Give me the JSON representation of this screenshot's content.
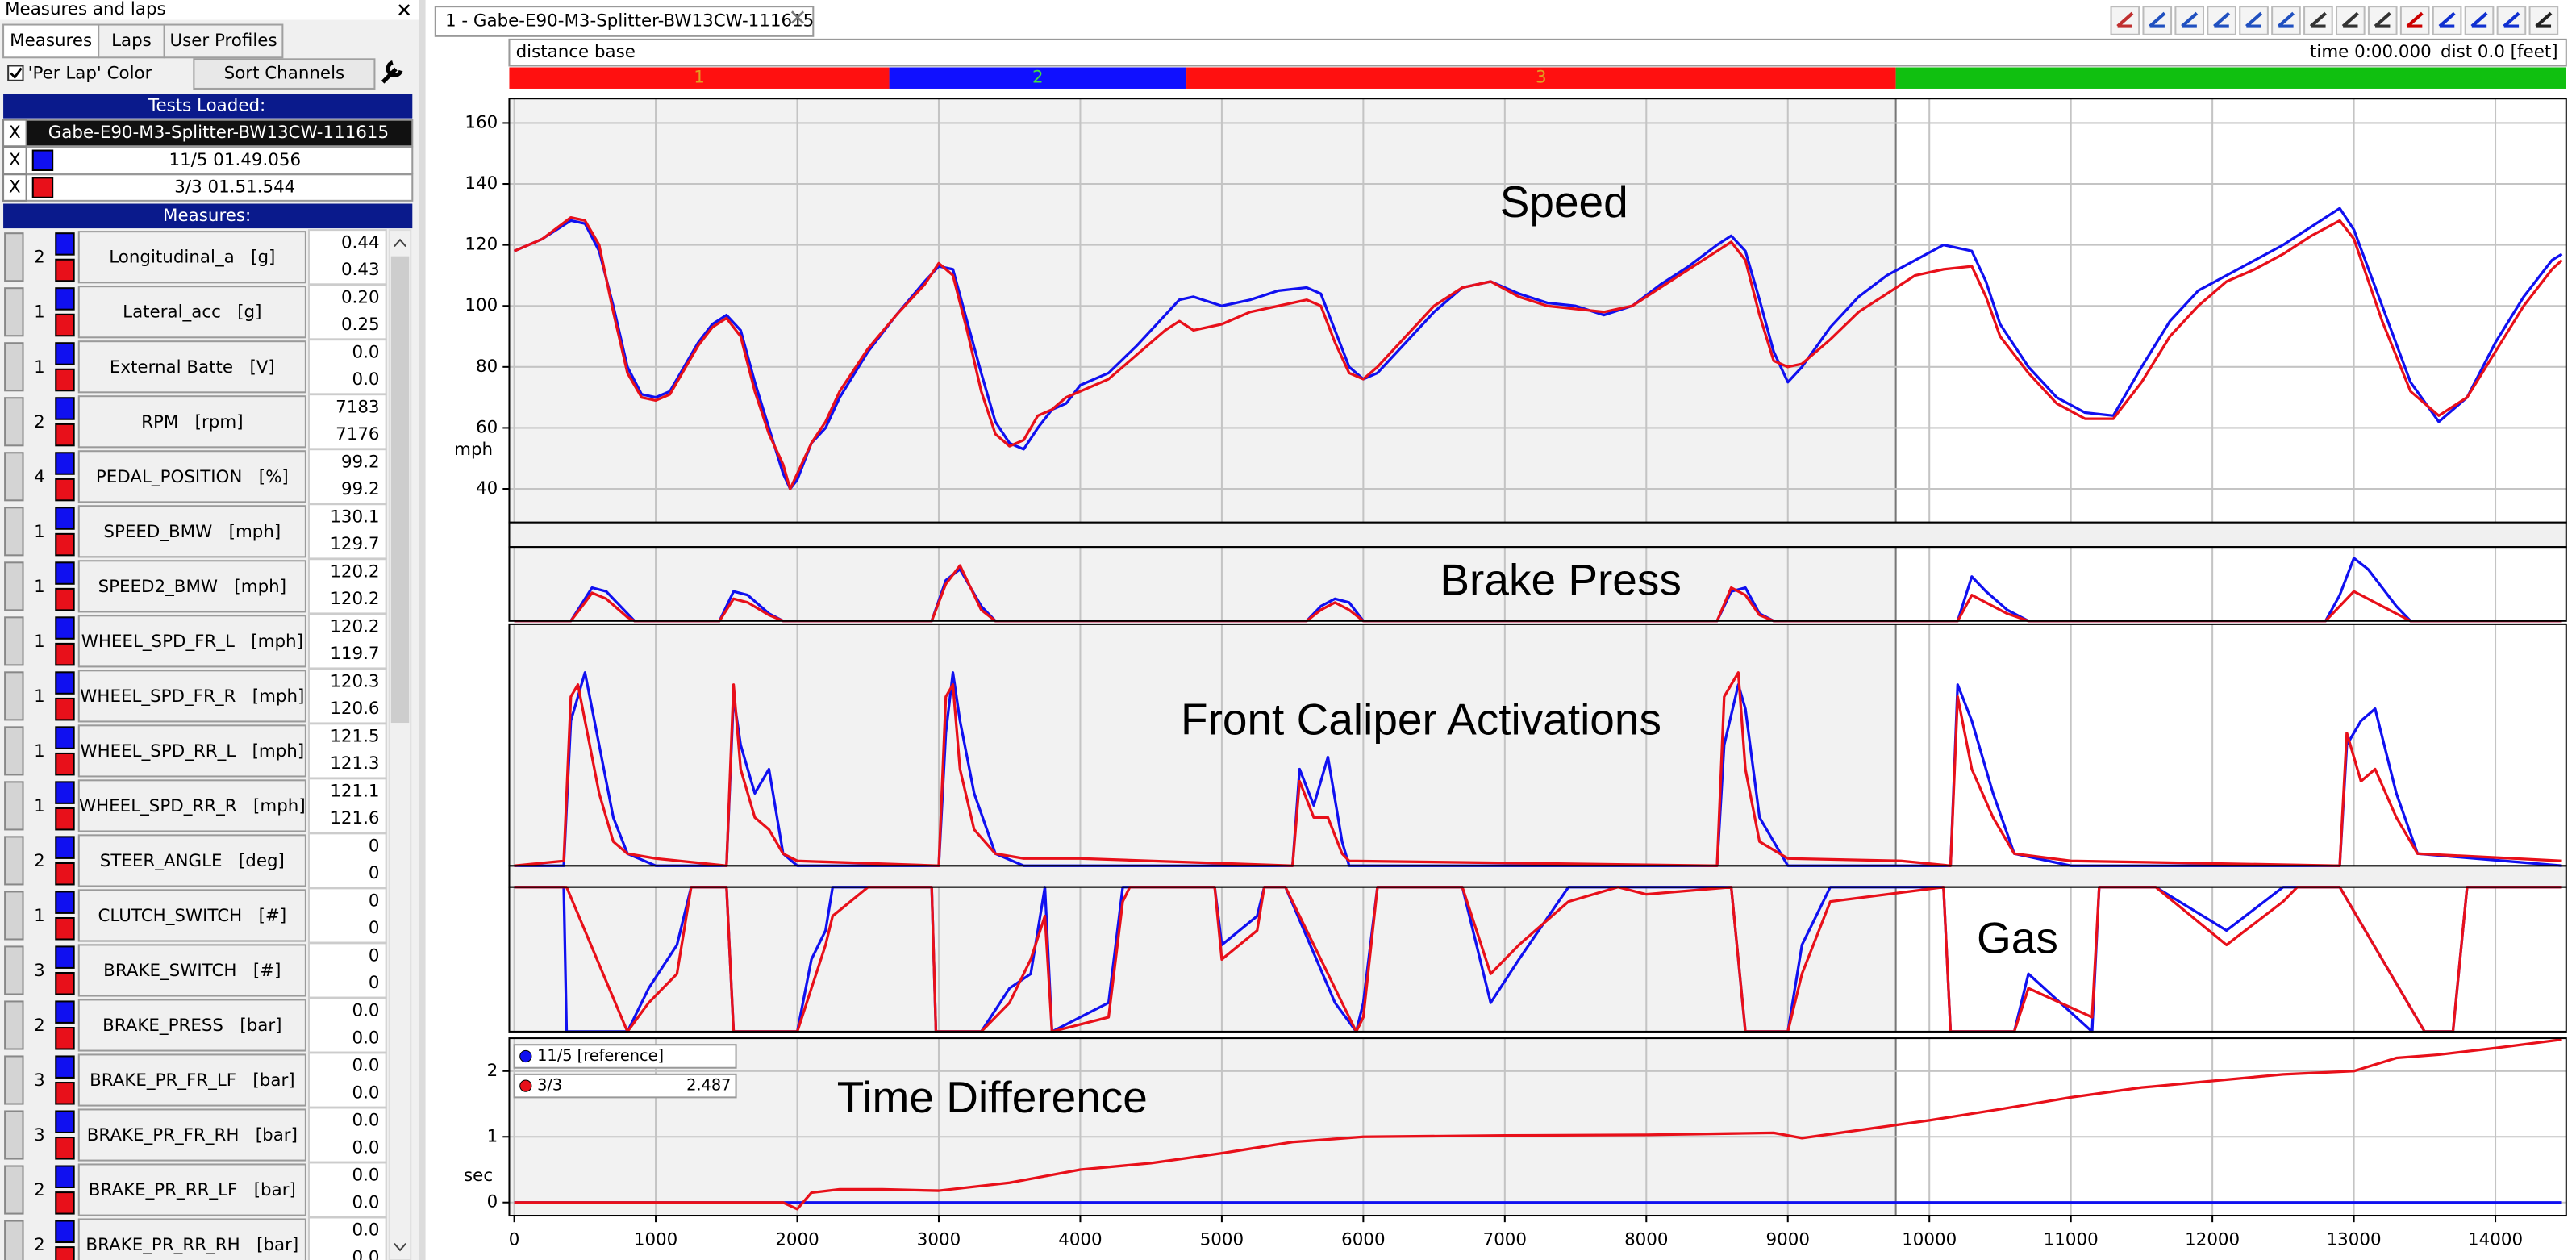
{
  "window": {
    "title": "Measures and laps",
    "tabs": [
      "Measures",
      "Laps",
      "User Profiles"
    ],
    "per_lap_color": "'Per Lap' Color",
    "sort_button": "Sort Channels",
    "tests_header": "Tests Loaded:",
    "tests": [
      {
        "x": "X",
        "name": "Gabe-E90-M3-Splitter-BW13CW-111615"
      },
      {
        "x": "X",
        "name": "11/5 01.49.056",
        "color": "#1010f0"
      },
      {
        "x": "X",
        "name": "3/3 01.51.544",
        "color": "#e8101a"
      }
    ],
    "measures_header": "Measures:",
    "measures": [
      {
        "count": "2",
        "name": "Longitudinal_a   [g]",
        "values": [
          "0.44",
          "0.43"
        ]
      },
      {
        "count": "1",
        "name": "Lateral_acc   [g]",
        "values": [
          "0.20",
          "0.25"
        ]
      },
      {
        "count": "1",
        "name": "External Batte   [V]",
        "values": [
          "0.0",
          "0.0"
        ]
      },
      {
        "count": "2",
        "name": "RPM   [rpm]",
        "values": [
          "7183",
          "7176"
        ]
      },
      {
        "count": "4",
        "name": "PEDAL_POSITION   [%]",
        "values": [
          "99.2",
          "99.2"
        ]
      },
      {
        "count": "1",
        "name": "SPEED_BMW   [mph]",
        "values": [
          "130.1",
          "129.7"
        ]
      },
      {
        "count": "1",
        "name": "SPEED2_BMW   [mph]",
        "values": [
          "120.2",
          "120.2"
        ]
      },
      {
        "count": "1",
        "name": "WHEEL_SPD_FR_L   [mph]",
        "values": [
          "120.2",
          "119.7"
        ]
      },
      {
        "count": "1",
        "name": "WHEEL_SPD_FR_R   [mph]",
        "values": [
          "120.3",
          "120.6"
        ]
      },
      {
        "count": "1",
        "name": "WHEEL_SPD_RR_L   [mph]",
        "values": [
          "121.5",
          "121.3"
        ]
      },
      {
        "count": "1",
        "name": "WHEEL_SPD_RR_R   [mph]",
        "values": [
          "121.1",
          "121.6"
        ]
      },
      {
        "count": "2",
        "name": "STEER_ANGLE   [deg]",
        "values": [
          "0",
          "0"
        ]
      },
      {
        "count": "1",
        "name": "CLUTCH_SWITCH   [#]",
        "values": [
          "0",
          "0"
        ]
      },
      {
        "count": "3",
        "name": "BRAKE_SWITCH   [#]",
        "values": [
          "0",
          "0"
        ]
      },
      {
        "count": "2",
        "name": "BRAKE_PRESS   [bar]",
        "values": [
          "0.0",
          "0.0"
        ]
      },
      {
        "count": "3",
        "name": "BRAKE_PR_FR_LF   [bar]",
        "values": [
          "0.0",
          "0.0"
        ]
      },
      {
        "count": "3",
        "name": "BRAKE_PR_FR_RH   [bar]",
        "values": [
          "0.0",
          "0.0"
        ]
      },
      {
        "count": "2",
        "name": "BRAKE_PR_RR_LF   [bar]",
        "values": [
          "0.0",
          "0.0"
        ]
      },
      {
        "count": "2",
        "name": "BRAKE_PR_RR_RH   [bar]",
        "values": [
          "0.0",
          "0.0"
        ]
      }
    ]
  },
  "document": {
    "tab": "1 - Gabe-E90-M3-Splitter-BW13CW-111615",
    "mode": "distance base",
    "time": "time 0:00.000",
    "dist": "dist 0.0 [feet]",
    "segments": [
      {
        "label": "1",
        "start": -35,
        "end": 2650,
        "color": "#ff1010"
      },
      {
        "label": "2",
        "start": 2650,
        "end": 4750,
        "color": "#1010ff"
      },
      {
        "label": "3",
        "start": 4750,
        "end": 9763,
        "color": "#ff1010"
      },
      {
        "start": 9763,
        "end": 14500,
        "color": "#10c010"
      }
    ]
  },
  "chart_data": [
    {
      "type": "line",
      "title": "Speed",
      "y_label": "mph",
      "xlim": [
        -35,
        14500
      ],
      "ylim": [
        29,
        168
      ],
      "yticks": [
        40,
        60,
        80,
        100,
        120,
        140,
        160
      ],
      "grid": true,
      "x": [
        0,
        200,
        400,
        500,
        600,
        700,
        800,
        900,
        1000,
        1100,
        1200,
        1300,
        1400,
        1500,
        1600,
        1700,
        1800,
        1900,
        1950,
        2000,
        2100,
        2200,
        2300,
        2500,
        2700,
        2900,
        3000,
        3100,
        3200,
        3300,
        3400,
        3500,
        3600,
        3700,
        3800,
        3900,
        4000,
        4200,
        4400,
        4600,
        4700,
        4800,
        5000,
        5200,
        5400,
        5600,
        5700,
        5800,
        5900,
        6000,
        6100,
        6300,
        6500,
        6700,
        6900,
        7100,
        7300,
        7500,
        7700,
        7900,
        8100,
        8300,
        8500,
        8600,
        8700,
        8800,
        8900,
        9000,
        9100,
        9300,
        9500,
        9700,
        9900,
        10100,
        10300,
        10400,
        10500,
        10700,
        10900,
        11100,
        11300,
        11500,
        11700,
        11900,
        12100,
        12300,
        12500,
        12700,
        12900,
        13000,
        13200,
        13400,
        13600,
        13800,
        14000,
        14200,
        14400,
        14470
      ],
      "series": [
        {
          "color": "#1010f0",
          "values": [
            118,
            122,
            128,
            127,
            118,
            100,
            80,
            71,
            70,
            72,
            80,
            88,
            94,
            97,
            92,
            75,
            60,
            45,
            40,
            43,
            55,
            60,
            70,
            85,
            97,
            108,
            113,
            112,
            95,
            78,
            62,
            55,
            53,
            60,
            66,
            68,
            74,
            78,
            87,
            97,
            102,
            103,
            100,
            102,
            105,
            106,
            104,
            92,
            80,
            76,
            78,
            88,
            98,
            106,
            108,
            104,
            101,
            100,
            97,
            100,
            107,
            113,
            120,
            123,
            118,
            102,
            85,
            75,
            80,
            93,
            103,
            110,
            115,
            120,
            118,
            108,
            94,
            80,
            70,
            65,
            64,
            80,
            95,
            105,
            110,
            115,
            120,
            126,
            132,
            125,
            100,
            75,
            62,
            70,
            88,
            103,
            115,
            117
          ]
        },
        {
          "color": "#e8101a",
          "values": [
            118,
            122,
            129,
            128,
            120,
            98,
            78,
            70,
            69,
            71,
            79,
            87,
            93,
            96,
            90,
            72,
            58,
            48,
            40,
            45,
            55,
            62,
            72,
            86,
            97,
            107,
            114,
            110,
            92,
            72,
            58,
            54,
            56,
            64,
            66,
            70,
            72,
            76,
            84,
            92,
            95,
            92,
            94,
            98,
            100,
            102,
            100,
            88,
            78,
            76,
            80,
            90,
            100,
            106,
            108,
            103,
            100,
            99,
            98,
            100,
            106,
            112,
            118,
            121,
            115,
            97,
            82,
            80,
            81,
            89,
            98,
            104,
            110,
            112,
            113,
            103,
            90,
            78,
            68,
            63,
            63,
            75,
            90,
            100,
            108,
            112,
            117,
            123,
            128,
            122,
            95,
            72,
            64,
            70,
            85,
            100,
            112,
            115
          ]
        }
      ]
    },
    {
      "type": "line",
      "title": "Brake Press",
      "xlim": [
        -35,
        14500
      ],
      "ylim": [
        0,
        100
      ],
      "x": [
        0,
        400,
        500,
        550,
        650,
        800,
        850,
        1450,
        1550,
        1650,
        1800,
        1900,
        2950,
        3050,
        3150,
        3300,
        3400,
        5600,
        5700,
        5800,
        5900,
        6000,
        8500,
        8600,
        8700,
        8800,
        8900,
        10200,
        10300,
        10400,
        10550,
        10700,
        12800,
        12900,
        13000,
        13100,
        13300,
        13400,
        14470
      ],
      "series": [
        {
          "color": "#1010f0",
          "values": [
            0,
            0,
            30,
            45,
            40,
            10,
            0,
            0,
            40,
            35,
            10,
            0,
            0,
            55,
            70,
            20,
            0,
            0,
            20,
            30,
            25,
            0,
            0,
            40,
            45,
            10,
            0,
            0,
            60,
            40,
            15,
            0,
            0,
            35,
            85,
            70,
            20,
            0,
            0
          ]
        },
        {
          "color": "#e8101a",
          "values": [
            0,
            0,
            25,
            38,
            30,
            5,
            0,
            0,
            30,
            25,
            8,
            0,
            0,
            50,
            75,
            15,
            0,
            0,
            15,
            25,
            15,
            0,
            0,
            45,
            35,
            8,
            0,
            0,
            35,
            25,
            10,
            0,
            0,
            20,
            40,
            30,
            10,
            0,
            0
          ]
        }
      ]
    },
    {
      "type": "line",
      "title": "Front Caliper Activations",
      "xlim": [
        -35,
        14500
      ],
      "ylim": [
        0,
        100
      ],
      "x": [
        0,
        350,
        400,
        450,
        500,
        600,
        700,
        800,
        1000,
        1500,
        1550,
        1600,
        1700,
        1800,
        1900,
        2000,
        3000,
        3050,
        3100,
        3150,
        3250,
        3400,
        3600,
        4000,
        5500,
        5550,
        5650,
        5750,
        5850,
        5900,
        8500,
        8550,
        8650,
        8700,
        8800,
        9000,
        9800,
        10150,
        10200,
        10300,
        10450,
        10600,
        11000,
        12900,
        12950,
        13050,
        13150,
        13300,
        13450,
        14470
      ],
      "series": [
        {
          "color": "#1010f0",
          "values": [
            0,
            0,
            60,
            70,
            80,
            50,
            20,
            5,
            0,
            0,
            70,
            50,
            30,
            40,
            5,
            0,
            0,
            55,
            80,
            60,
            30,
            5,
            0,
            0,
            0,
            40,
            25,
            45,
            10,
            0,
            0,
            50,
            75,
            65,
            20,
            0,
            0,
            0,
            75,
            60,
            30,
            5,
            0,
            0,
            50,
            60,
            65,
            30,
            5,
            0
          ]
        },
        {
          "color": "#e8101a",
          "values": [
            0,
            2,
            70,
            75,
            60,
            30,
            10,
            5,
            3,
            0,
            75,
            40,
            20,
            15,
            5,
            2,
            0,
            70,
            75,
            40,
            15,
            5,
            3,
            3,
            0,
            35,
            20,
            20,
            5,
            2,
            0,
            70,
            80,
            40,
            10,
            3,
            2,
            0,
            70,
            40,
            20,
            5,
            2,
            0,
            55,
            35,
            40,
            20,
            5,
            2
          ]
        }
      ]
    },
    {
      "type": "line",
      "title": "Gas",
      "xlim": [
        -35,
        14500
      ],
      "ylim": [
        0,
        100
      ],
      "x": [
        0,
        350,
        370,
        800,
        950,
        1150,
        1250,
        1300,
        1500,
        1550,
        2000,
        2100,
        2200,
        2250,
        2500,
        2950,
        2980,
        3300,
        3500,
        3650,
        3750,
        3800,
        4200,
        4300,
        4350,
        4950,
        5000,
        5250,
        5300,
        5450,
        5800,
        5950,
        6000,
        6100,
        6700,
        6900,
        7100,
        7450,
        7800,
        8000,
        8600,
        8700,
        9000,
        9100,
        9300,
        10100,
        10150,
        10600,
        10700,
        11150,
        11200,
        11600,
        12100,
        12500,
        12600,
        12750,
        12900,
        13500,
        13700,
        13800,
        14470
      ],
      "series": [
        {
          "color": "#1010f0",
          "values": [
            100,
            100,
            0,
            0,
            30,
            60,
            100,
            100,
            100,
            0,
            0,
            50,
            70,
            100,
            100,
            100,
            0,
            0,
            30,
            40,
            100,
            0,
            20,
            100,
            100,
            100,
            60,
            80,
            100,
            100,
            20,
            0,
            20,
            100,
            100,
            20,
            50,
            100,
            100,
            100,
            100,
            0,
            0,
            60,
            100,
            100,
            0,
            0,
            40,
            0,
            100,
            100,
            70,
            100,
            100,
            100,
            100,
            0,
            0,
            100,
            100
          ]
        },
        {
          "color": "#e8101a",
          "values": [
            100,
            100,
            100,
            0,
            20,
            40,
            100,
            100,
            100,
            0,
            0,
            30,
            60,
            80,
            100,
            100,
            0,
            0,
            20,
            50,
            80,
            0,
            10,
            90,
            100,
            100,
            50,
            70,
            100,
            100,
            30,
            0,
            10,
            100,
            100,
            40,
            60,
            90,
            100,
            95,
            100,
            0,
            0,
            40,
            90,
            100,
            0,
            0,
            30,
            10,
            100,
            100,
            60,
            90,
            100,
            100,
            100,
            0,
            0,
            100,
            100
          ]
        }
      ]
    },
    {
      "type": "line",
      "title": "Time Difference",
      "y_label": "sec",
      "xlim": [
        -35,
        14500
      ],
      "ylim": [
        -0.2,
        2.5
      ],
      "yticks": [
        0,
        1,
        2
      ],
      "xticks": [
        0,
        1000,
        2000,
        3000,
        4000,
        5000,
        6000,
        7000,
        8000,
        9000,
        10000,
        11000,
        12000,
        13000,
        14000
      ],
      "grid": true,
      "x": [
        0,
        1700,
        1900,
        2000,
        2100,
        2300,
        2600,
        3000,
        3500,
        4000,
        4500,
        5000,
        5500,
        6000,
        7000,
        8000,
        8600,
        8900,
        9100,
        9500,
        10000,
        10500,
        11000,
        11500,
        12000,
        12500,
        13000,
        13300,
        13600,
        14000,
        14470
      ],
      "series": [
        {
          "name": "11/5 [reference]",
          "color": "#1010f0",
          "values": [
            0,
            0,
            0,
            0,
            0,
            0,
            0,
            0,
            0,
            0,
            0,
            0,
            0,
            0,
            0,
            0,
            0,
            0,
            0,
            0,
            0,
            0,
            0,
            0,
            0,
            0,
            0,
            0,
            0,
            0,
            0
          ]
        },
        {
          "name": "3/3",
          "color": "#e8101a",
          "cursor_value": 2.487,
          "values": [
            0,
            0,
            0,
            -0.1,
            0.15,
            0.2,
            0.2,
            0.18,
            0.3,
            0.5,
            0.6,
            0.75,
            0.92,
            1.0,
            1.02,
            1.03,
            1.05,
            1.06,
            0.98,
            1.1,
            1.25,
            1.42,
            1.6,
            1.75,
            1.85,
            1.95,
            2.0,
            2.2,
            2.25,
            2.35,
            2.48
          ]
        }
      ]
    }
  ]
}
